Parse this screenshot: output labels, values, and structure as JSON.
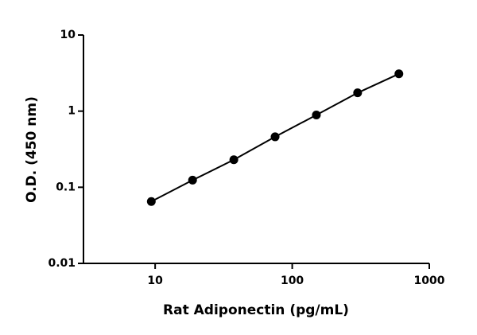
{
  "chart_data": {
    "type": "scatter",
    "x_label": "Rat Adiponectin (pg/mL)",
    "y_label": "O.D. (450 nm)",
    "x": [
      9.375,
      18.75,
      37.5,
      75,
      150,
      300,
      600
    ],
    "values": [
      0.065,
      0.124,
      0.23,
      0.46,
      0.89,
      1.74,
      3.09
    ],
    "color": "#000000",
    "line": true,
    "xlog": true,
    "ylog": true,
    "xlim": [
      3,
      1000
    ],
    "ylim": [
      0.01,
      10
    ],
    "xticks": [
      10,
      100,
      1000
    ],
    "yticks": [
      0.01,
      0.1,
      1,
      10
    ]
  }
}
